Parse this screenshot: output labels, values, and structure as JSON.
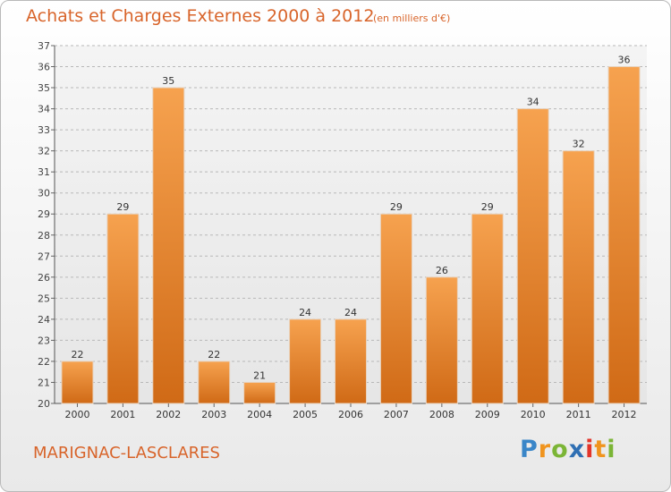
{
  "title": "Achats et Charges Externes 2000 à 2012",
  "subtitle": "(en milliers d'€)",
  "place_name": "MARIGNAC-LASCLARES",
  "brand": {
    "letters": [
      "P",
      "r",
      "o",
      "x",
      "i",
      "t",
      "i"
    ],
    "colors": [
      "#3a86c8",
      "#f0941e",
      "#7bb536",
      "#2f6fb3",
      "#e3352b",
      "#f0941e",
      "#7bb536"
    ]
  },
  "colors": {
    "bar_light": "#f6a24f",
    "bar_dark": "#d06a16",
    "accent": "#d8642a"
  },
  "chart_data": {
    "type": "bar",
    "categories": [
      "2000",
      "2001",
      "2002",
      "2003",
      "2004",
      "2005",
      "2006",
      "2007",
      "2008",
      "2009",
      "2010",
      "2011",
      "2012"
    ],
    "values": [
      22,
      29,
      35,
      22,
      21,
      24,
      24,
      29,
      26,
      29,
      34,
      32,
      36
    ],
    "title": "Achats et Charges Externes 2000 à 2012",
    "xlabel": "",
    "ylabel": "",
    "ylim": [
      20,
      37
    ],
    "yticks": [
      20,
      21,
      22,
      23,
      24,
      25,
      26,
      27,
      28,
      29,
      30,
      31,
      32,
      33,
      34,
      35,
      36,
      37
    ],
    "grid": true
  }
}
